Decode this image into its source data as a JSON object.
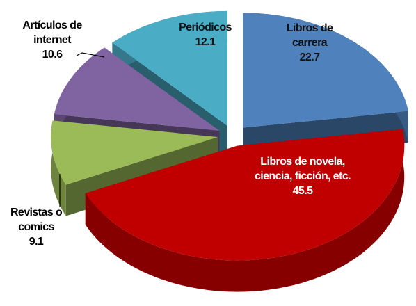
{
  "chart_data": {
    "type": "pie",
    "categories": [
      "Libros de carrera",
      "Libros de novela, ciencia, ficción, etc.",
      "Revistas o comics",
      "Artículos de internet",
      "Periódicos"
    ],
    "values": [
      22.7,
      45.5,
      9.1,
      10.6,
      12.1
    ],
    "colors": [
      "#4f81bd",
      "#c00000",
      "#9bbb59",
      "#8064a2",
      "#4bacc6"
    ]
  }
}
